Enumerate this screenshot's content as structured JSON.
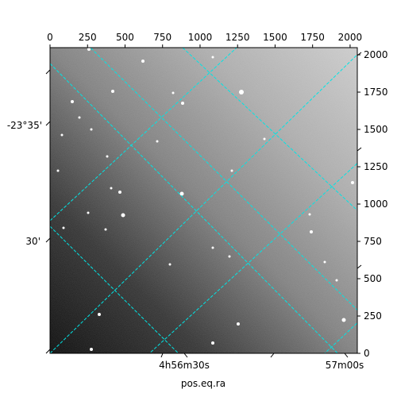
{
  "chart_data": {
    "type": "image",
    "xlabel": "pos.eq.ra",
    "ylabel": "",
    "pixel_axes": {
      "x": {
        "range": [
          0,
          2048
        ],
        "ticks": [
          0,
          250,
          500,
          750,
          1000,
          1250,
          1500,
          1750,
          2000
        ]
      },
      "y": {
        "range": [
          0,
          2048
        ],
        "ticks": [
          0,
          250,
          500,
          750,
          1000,
          1250,
          1500,
          1750,
          2000
        ]
      }
    },
    "world_axes": {
      "ra_tick_labels": [
        "4h56m30s",
        "57m00s"
      ],
      "dec_tick_labels": [
        "-23°35'",
        "30'"
      ]
    },
    "grid": true,
    "grid_color": "#00e5e5",
    "image_colormap": "grayscale",
    "image_description_brightness": "dark at lower-left, bright at upper-right"
  }
}
